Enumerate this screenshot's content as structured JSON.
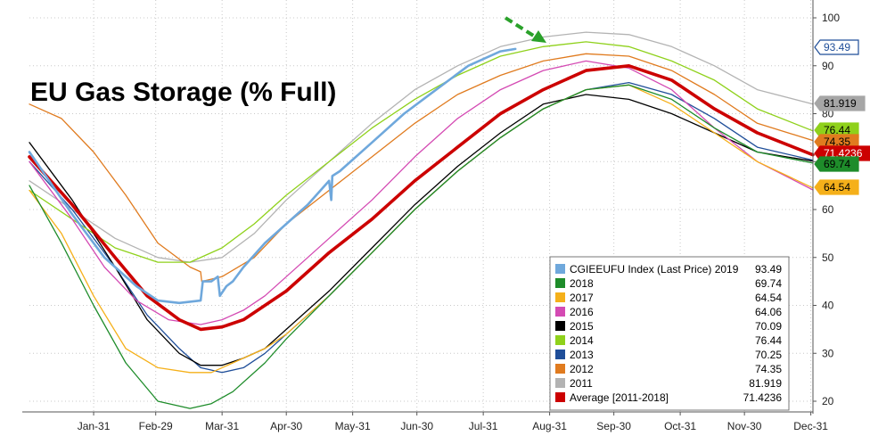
{
  "chart_data": {
    "type": "line",
    "title": "EU Gas Storage (% Full)",
    "xlabel": "",
    "ylabel": "",
    "ylim": [
      17,
      105
    ],
    "x_ticks": [
      "Jan-31",
      "Feb-29",
      "Mar-31",
      "Apr-30",
      "May-31",
      "Jun-30",
      "Jul-31",
      "Aug-31",
      "Sep-30",
      "Oct-31",
      "Nov-30",
      "Dec-31"
    ],
    "y_ticks": [
      20,
      30,
      40,
      50,
      60,
      70,
      80,
      90,
      100
    ],
    "legend_position": "bottom-right",
    "series": [
      {
        "name": "2011",
        "color": "#b3b3b3",
        "width": 1.3,
        "last": "81.919",
        "points": [
          [
            0,
            66
          ],
          [
            20,
            60
          ],
          [
            40,
            54
          ],
          [
            60,
            50
          ],
          [
            75,
            49
          ],
          [
            90,
            50
          ],
          [
            105,
            55
          ],
          [
            120,
            62
          ],
          [
            140,
            70
          ],
          [
            160,
            78
          ],
          [
            180,
            85
          ],
          [
            200,
            90
          ],
          [
            220,
            94
          ],
          [
            240,
            96
          ],
          [
            260,
            97
          ],
          [
            280,
            96.5
          ],
          [
            300,
            94
          ],
          [
            320,
            90
          ],
          [
            340,
            85
          ],
          [
            366,
            82
          ]
        ]
      },
      {
        "name": "2012",
        "color": "#e07b1f",
        "width": 1.3,
        "last": "74.35",
        "points": [
          [
            0,
            82
          ],
          [
            15,
            79
          ],
          [
            30,
            72
          ],
          [
            45,
            63
          ],
          [
            60,
            53
          ],
          [
            75,
            48
          ],
          [
            80,
            47
          ],
          [
            80.5,
            45
          ],
          [
            90,
            46
          ],
          [
            105,
            50
          ],
          [
            120,
            57
          ],
          [
            140,
            64
          ],
          [
            160,
            71
          ],
          [
            180,
            78
          ],
          [
            200,
            84
          ],
          [
            220,
            88
          ],
          [
            240,
            91
          ],
          [
            260,
            92.5
          ],
          [
            280,
            92
          ],
          [
            300,
            89
          ],
          [
            320,
            84
          ],
          [
            340,
            78
          ],
          [
            366,
            74.4
          ]
        ]
      },
      {
        "name": "2013",
        "color": "#1f4e99",
        "width": 1.3,
        "last": "70.25",
        "points": [
          [
            0,
            70
          ],
          [
            20,
            60
          ],
          [
            40,
            48
          ],
          [
            55,
            38
          ],
          [
            70,
            31
          ],
          [
            80,
            27
          ],
          [
            90,
            26
          ],
          [
            100,
            27
          ],
          [
            110,
            30
          ],
          [
            120,
            34
          ],
          [
            140,
            42
          ],
          [
            160,
            51
          ],
          [
            180,
            60
          ],
          [
            200,
            68
          ],
          [
            220,
            75
          ],
          [
            240,
            81
          ],
          [
            260,
            85
          ],
          [
            280,
            86.5
          ],
          [
            300,
            84
          ],
          [
            320,
            79
          ],
          [
            340,
            73
          ],
          [
            366,
            70.3
          ]
        ]
      },
      {
        "name": "2014",
        "color": "#8fd11b",
        "width": 1.3,
        "last": "76.44",
        "points": [
          [
            0,
            64
          ],
          [
            20,
            58
          ],
          [
            40,
            52
          ],
          [
            60,
            49
          ],
          [
            75,
            49
          ],
          [
            90,
            52
          ],
          [
            105,
            57
          ],
          [
            120,
            63
          ],
          [
            140,
            70
          ],
          [
            160,
            77
          ],
          [
            180,
            83
          ],
          [
            200,
            88
          ],
          [
            220,
            92
          ],
          [
            240,
            94
          ],
          [
            260,
            95
          ],
          [
            280,
            94
          ],
          [
            300,
            91
          ],
          [
            320,
            87
          ],
          [
            340,
            81
          ],
          [
            366,
            76.4
          ]
        ]
      },
      {
        "name": "2015",
        "color": "#000000",
        "width": 1.3,
        "last": "70.09",
        "points": [
          [
            0,
            74
          ],
          [
            20,
            62
          ],
          [
            40,
            48
          ],
          [
            55,
            37
          ],
          [
            70,
            30
          ],
          [
            80,
            27.5
          ],
          [
            90,
            27.5
          ],
          [
            100,
            29
          ],
          [
            110,
            31
          ],
          [
            120,
            35
          ],
          [
            140,
            43
          ],
          [
            160,
            52
          ],
          [
            180,
            61
          ],
          [
            200,
            69
          ],
          [
            220,
            76
          ],
          [
            240,
            82
          ],
          [
            260,
            84
          ],
          [
            280,
            83
          ],
          [
            300,
            80
          ],
          [
            320,
            76
          ],
          [
            340,
            72
          ],
          [
            366,
            70.1
          ]
        ]
      },
      {
        "name": "2016",
        "color": "#d44ab3",
        "width": 1.3,
        "last": "64.06",
        "points": [
          [
            0,
            70
          ],
          [
            20,
            58
          ],
          [
            35,
            48
          ],
          [
            50,
            41
          ],
          [
            65,
            37
          ],
          [
            80,
            36
          ],
          [
            90,
            37
          ],
          [
            100,
            39
          ],
          [
            110,
            42
          ],
          [
            120,
            46
          ],
          [
            140,
            54
          ],
          [
            160,
            62
          ],
          [
            180,
            71
          ],
          [
            200,
            79
          ],
          [
            220,
            85
          ],
          [
            240,
            89
          ],
          [
            260,
            91
          ],
          [
            280,
            89.5
          ],
          [
            300,
            85
          ],
          [
            320,
            77
          ],
          [
            340,
            70
          ],
          [
            366,
            64.1
          ]
        ]
      },
      {
        "name": "2017",
        "color": "#f5b01a",
        "width": 1.3,
        "last": "64.54",
        "points": [
          [
            0,
            64
          ],
          [
            15,
            55
          ],
          [
            30,
            42
          ],
          [
            45,
            31
          ],
          [
            60,
            27
          ],
          [
            75,
            26
          ],
          [
            85,
            26
          ],
          [
            95,
            28
          ],
          [
            110,
            31
          ],
          [
            120,
            34
          ],
          [
            140,
            42
          ],
          [
            160,
            51
          ],
          [
            180,
            60
          ],
          [
            200,
            68
          ],
          [
            220,
            75
          ],
          [
            240,
            81
          ],
          [
            260,
            85
          ],
          [
            280,
            86
          ],
          [
            300,
            82
          ],
          [
            320,
            76
          ],
          [
            340,
            70
          ],
          [
            366,
            64.5
          ]
        ]
      },
      {
        "name": "2018",
        "color": "#1e8c2a",
        "width": 1.3,
        "last": "69.74",
        "points": [
          [
            0,
            65
          ],
          [
            15,
            53
          ],
          [
            30,
            40
          ],
          [
            45,
            28
          ],
          [
            60,
            20
          ],
          [
            75,
            18.5
          ],
          [
            85,
            19.5
          ],
          [
            95,
            22
          ],
          [
            110,
            28
          ],
          [
            120,
            33
          ],
          [
            140,
            42
          ],
          [
            160,
            51
          ],
          [
            180,
            60
          ],
          [
            200,
            68
          ],
          [
            220,
            75
          ],
          [
            240,
            81
          ],
          [
            260,
            85
          ],
          [
            280,
            86
          ],
          [
            300,
            83
          ],
          [
            320,
            77
          ],
          [
            340,
            72
          ],
          [
            366,
            69.7
          ]
        ]
      },
      {
        "name": "Average [2011-2018]",
        "color": "#cc0000",
        "width": 3.6,
        "last": "71.4236",
        "points": [
          [
            0,
            71
          ],
          [
            20,
            61
          ],
          [
            40,
            50
          ],
          [
            55,
            42
          ],
          [
            70,
            37
          ],
          [
            80,
            35
          ],
          [
            90,
            35.5
          ],
          [
            100,
            37
          ],
          [
            110,
            40
          ],
          [
            120,
            43
          ],
          [
            140,
            51
          ],
          [
            160,
            58
          ],
          [
            180,
            66
          ],
          [
            200,
            73
          ],
          [
            220,
            80
          ],
          [
            240,
            85
          ],
          [
            260,
            89
          ],
          [
            280,
            90
          ],
          [
            300,
            87
          ],
          [
            320,
            81
          ],
          [
            340,
            76
          ],
          [
            366,
            71.4
          ]
        ]
      },
      {
        "name": "CGIEEUFU Index (Last Price) 2019",
        "color": "#6fa8dc",
        "width": 2.6,
        "last": "93.49",
        "points": [
          [
            0,
            72
          ],
          [
            20,
            59
          ],
          [
            35,
            50
          ],
          [
            50,
            44
          ],
          [
            60,
            41
          ],
          [
            70,
            40.5
          ],
          [
            80,
            41
          ],
          [
            81,
            45
          ],
          [
            85,
            45
          ],
          [
            88,
            46
          ],
          [
            89,
            42
          ],
          [
            92,
            44
          ],
          [
            95,
            45
          ],
          [
            100,
            48
          ],
          [
            110,
            53
          ],
          [
            120,
            57
          ],
          [
            130,
            61
          ],
          [
            140,
            66
          ],
          [
            141,
            62
          ],
          [
            141.5,
            67
          ],
          [
            145,
            68
          ],
          [
            160,
            74
          ],
          [
            175,
            80
          ],
          [
            190,
            85
          ],
          [
            205,
            90
          ],
          [
            220,
            93
          ],
          [
            227,
            93.5
          ]
        ]
      }
    ],
    "badges": [
      {
        "label": "93.49",
        "value": 93.49,
        "bg": "#ffffff",
        "fg": "#1f4e99",
        "border": "#1f4e99"
      },
      {
        "label": "81.919",
        "value": 81.919,
        "bg": "#a6a6a6",
        "fg": "#000000",
        "border": "#a6a6a6"
      },
      {
        "label": "76.44",
        "value": 76.44,
        "bg": "#8fd11b",
        "fg": "#000000",
        "border": "#8fd11b"
      },
      {
        "label": "74.35",
        "value": 74.35,
        "bg": "#e07b1f",
        "fg": "#000000",
        "border": "#e07b1f"
      },
      {
        "label": "71.4236",
        "value": 71.4236,
        "bg": "#cc0000",
        "fg": "#ffffff",
        "border": "#cc0000"
      },
      {
        "label": "69.74",
        "value": 69.74,
        "bg": "#1e8c2a",
        "fg": "#000000",
        "border": "#1e8c2a"
      },
      {
        "label": "64.54",
        "value": 64.54,
        "bg": "#f5b01a",
        "fg": "#000000",
        "border": "#f5b01a"
      }
    ],
    "legend": [
      {
        "name": "CGIEEUFU Index (Last Price) 2019",
        "value": "93.49",
        "color": "#6fa8dc"
      },
      {
        "name": "2018",
        "value": "69.74",
        "color": "#1e8c2a"
      },
      {
        "name": "2017",
        "value": "64.54",
        "color": "#f5b01a"
      },
      {
        "name": "2016",
        "value": "64.06",
        "color": "#d44ab3"
      },
      {
        "name": "2015",
        "value": "70.09",
        "color": "#000000"
      },
      {
        "name": "2014",
        "value": "76.44",
        "color": "#8fd11b"
      },
      {
        "name": "2013",
        "value": "70.25",
        "color": "#1f4e99"
      },
      {
        "name": "2012",
        "value": "74.35",
        "color": "#e07b1f"
      },
      {
        "name": "2011",
        "value": "81.919",
        "color": "#b3b3b3"
      },
      {
        "name": "Average [2011-2018]",
        "value": "71.4236",
        "color": "#cc0000"
      }
    ],
    "annotation_arrow_color": "#2aa12a"
  }
}
